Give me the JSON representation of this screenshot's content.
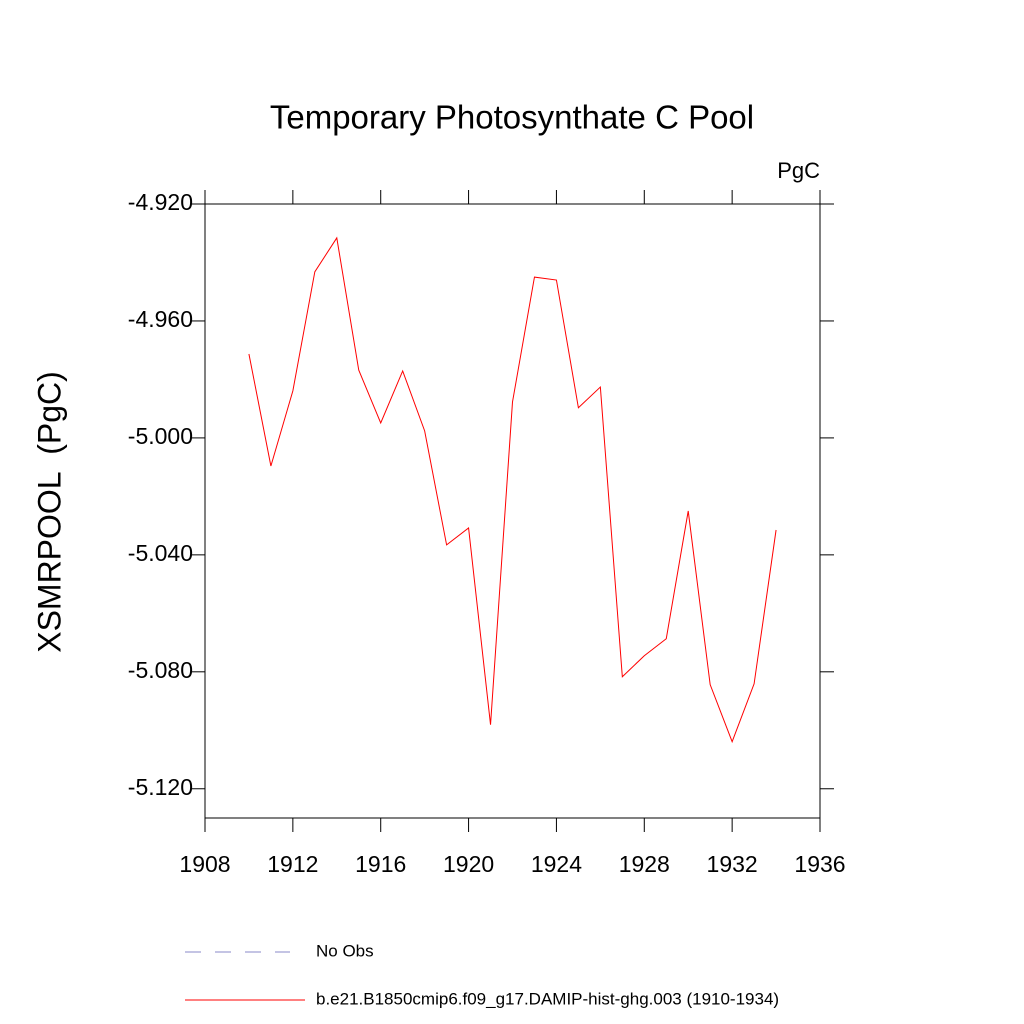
{
  "chart_data": {
    "type": "line",
    "title": "Temporary Photosynthate C Pool",
    "units": "PgC",
    "y_label": "XSMRPOOL  (PgC)",
    "x": [
      1910,
      1911,
      1912,
      1913,
      1914,
      1915,
      1916,
      1917,
      1918,
      1919,
      1920,
      1921,
      1922,
      1923,
      1924,
      1925,
      1926,
      1927,
      1928,
      1929,
      1930,
      1931,
      1932,
      1933,
      1934
    ],
    "series": [
      {
        "name": "b.e21.B1850cmip6.f09_g17.DAMIP-hist-ghg.003 (1910-1934)",
        "color": "#ff0000",
        "values": [
          -4.9713,
          -5.0096,
          -4.9839,
          -4.9432,
          -4.9316,
          -4.9768,
          -4.9949,
          -4.9771,
          -4.9976,
          -5.0366,
          -5.0308,
          -5.0981,
          -4.9877,
          -4.945,
          -4.946,
          -4.9897,
          -4.9826,
          -5.0817,
          -5.0745,
          -5.0687,
          -5.025,
          -5.0844,
          -5.1039,
          -5.0841,
          -5.0315
        ]
      }
    ],
    "reference": {
      "name": "No Obs",
      "color": "#8a8ac8",
      "dashed": true
    },
    "xlim": [
      1908,
      1936
    ],
    "xticks": [
      1908,
      1912,
      1916,
      1920,
      1924,
      1928,
      1932,
      1936
    ],
    "ylim": [
      -5.13,
      -4.92
    ],
    "yticks": [
      {
        "value": -4.92,
        "label": "-4.920"
      },
      {
        "value": -4.96,
        "label": "-4.960"
      },
      {
        "value": -5.0,
        "label": "-5.000"
      },
      {
        "value": -5.04,
        "label": "-5.040"
      },
      {
        "value": -5.08,
        "label": "-5.080"
      },
      {
        "value": -5.12,
        "label": "-5.120"
      }
    ],
    "grid": false
  }
}
